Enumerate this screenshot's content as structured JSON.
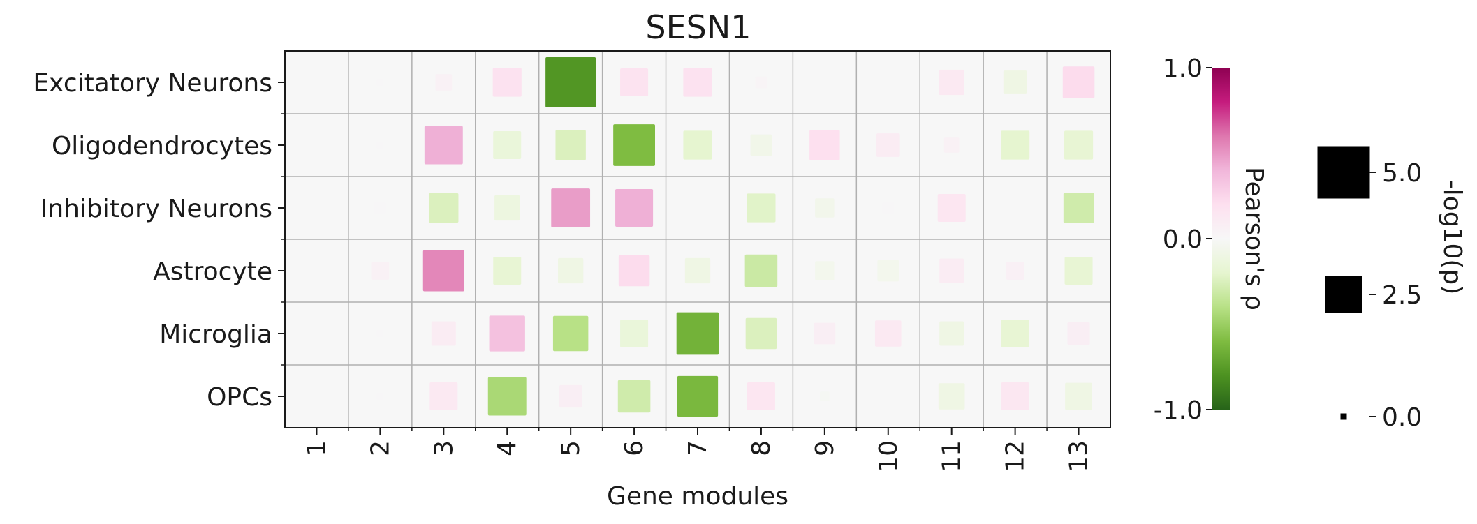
{
  "chart_data": {
    "type": "heatmap",
    "title": "SESN1",
    "xlabel": "Gene modules",
    "ylabel": "",
    "categories": [
      "1",
      "2",
      "3",
      "4",
      "5",
      "6",
      "7",
      "8",
      "9",
      "10",
      "11",
      "12",
      "13"
    ],
    "rows": [
      "Excitatory Neurons",
      "Oligodendrocytes",
      "Inhibitory Neurons",
      "Astrocyte",
      "Microglia",
      "OPCs"
    ],
    "rho": [
      [
        0.0,
        0.01,
        0.05,
        0.18,
        -0.78,
        0.17,
        0.18,
        0.03,
        0.0,
        0.0,
        0.12,
        -0.1,
        0.22
      ],
      [
        0.0,
        0.01,
        0.42,
        -0.15,
        -0.25,
        -0.6,
        -0.2,
        -0.07,
        0.2,
        0.1,
        0.05,
        -0.2,
        -0.18
      ],
      [
        0.0,
        0.01,
        -0.25,
        -0.12,
        0.48,
        0.42,
        0.0,
        -0.22,
        -0.06,
        0.01,
        0.15,
        0.0,
        -0.3
      ],
      [
        0.0,
        0.05,
        0.55,
        -0.18,
        -0.1,
        0.22,
        -0.1,
        -0.32,
        -0.05,
        -0.05,
        0.1,
        0.06,
        -0.18
      ],
      [
        0.0,
        0.01,
        0.1,
        0.35,
        -0.4,
        -0.15,
        -0.65,
        -0.25,
        0.08,
        0.12,
        -0.1,
        -0.18,
        0.08
      ],
      [
        0.0,
        0.01,
        0.12,
        -0.45,
        0.08,
        -0.3,
        -0.62,
        0.15,
        -0.02,
        0.0,
        -0.1,
        0.14,
        -0.1
      ]
    ],
    "neglog10p": [
      [
        0.0,
        0.1,
        0.6,
        1.8,
        5.5,
        1.7,
        1.8,
        0.3,
        0.0,
        0.0,
        1.4,
        1.2,
        2.2
      ],
      [
        0.0,
        0.1,
        3.2,
        1.7,
        2.0,
        3.8,
        1.8,
        1.0,
        2.0,
        1.2,
        0.5,
        1.8,
        1.8
      ],
      [
        0.0,
        0.3,
        1.9,
        1.4,
        3.3,
        3.1,
        0.0,
        1.8,
        0.8,
        0.3,
        1.7,
        0.0,
        2.0
      ],
      [
        0.0,
        0.7,
        3.7,
        1.7,
        1.4,
        2.1,
        1.4,
        2.3,
        0.8,
        1.0,
        1.3,
        0.7,
        1.7
      ],
      [
        0.0,
        0.1,
        1.3,
        2.8,
        2.7,
        1.7,
        3.9,
        2.1,
        1.0,
        1.5,
        1.3,
        1.7,
        1.1
      ],
      [
        0.0,
        0.1,
        1.7,
        3.2,
        1.1,
        2.3,
        3.6,
        1.7,
        0.2,
        0.0,
        1.5,
        1.7,
        1.6
      ]
    ],
    "colorbar": {
      "label": "Pearson's ρ",
      "range": [
        -1.0,
        1.0
      ],
      "tick_labels": [
        "1.0",
        "0.0",
        "-1.0"
      ],
      "colors": {
        "neg": "#276419",
        "mid": "#f7f7f7",
        "pos": "#8e0152"
      }
    },
    "size_legend": {
      "label": "-log10(p)",
      "values": [
        5.0,
        2.5,
        0.0
      ],
      "tick_labels": [
        "5.0",
        "2.5",
        "0.0"
      ]
    },
    "grid": true,
    "legend_position": "right"
  }
}
